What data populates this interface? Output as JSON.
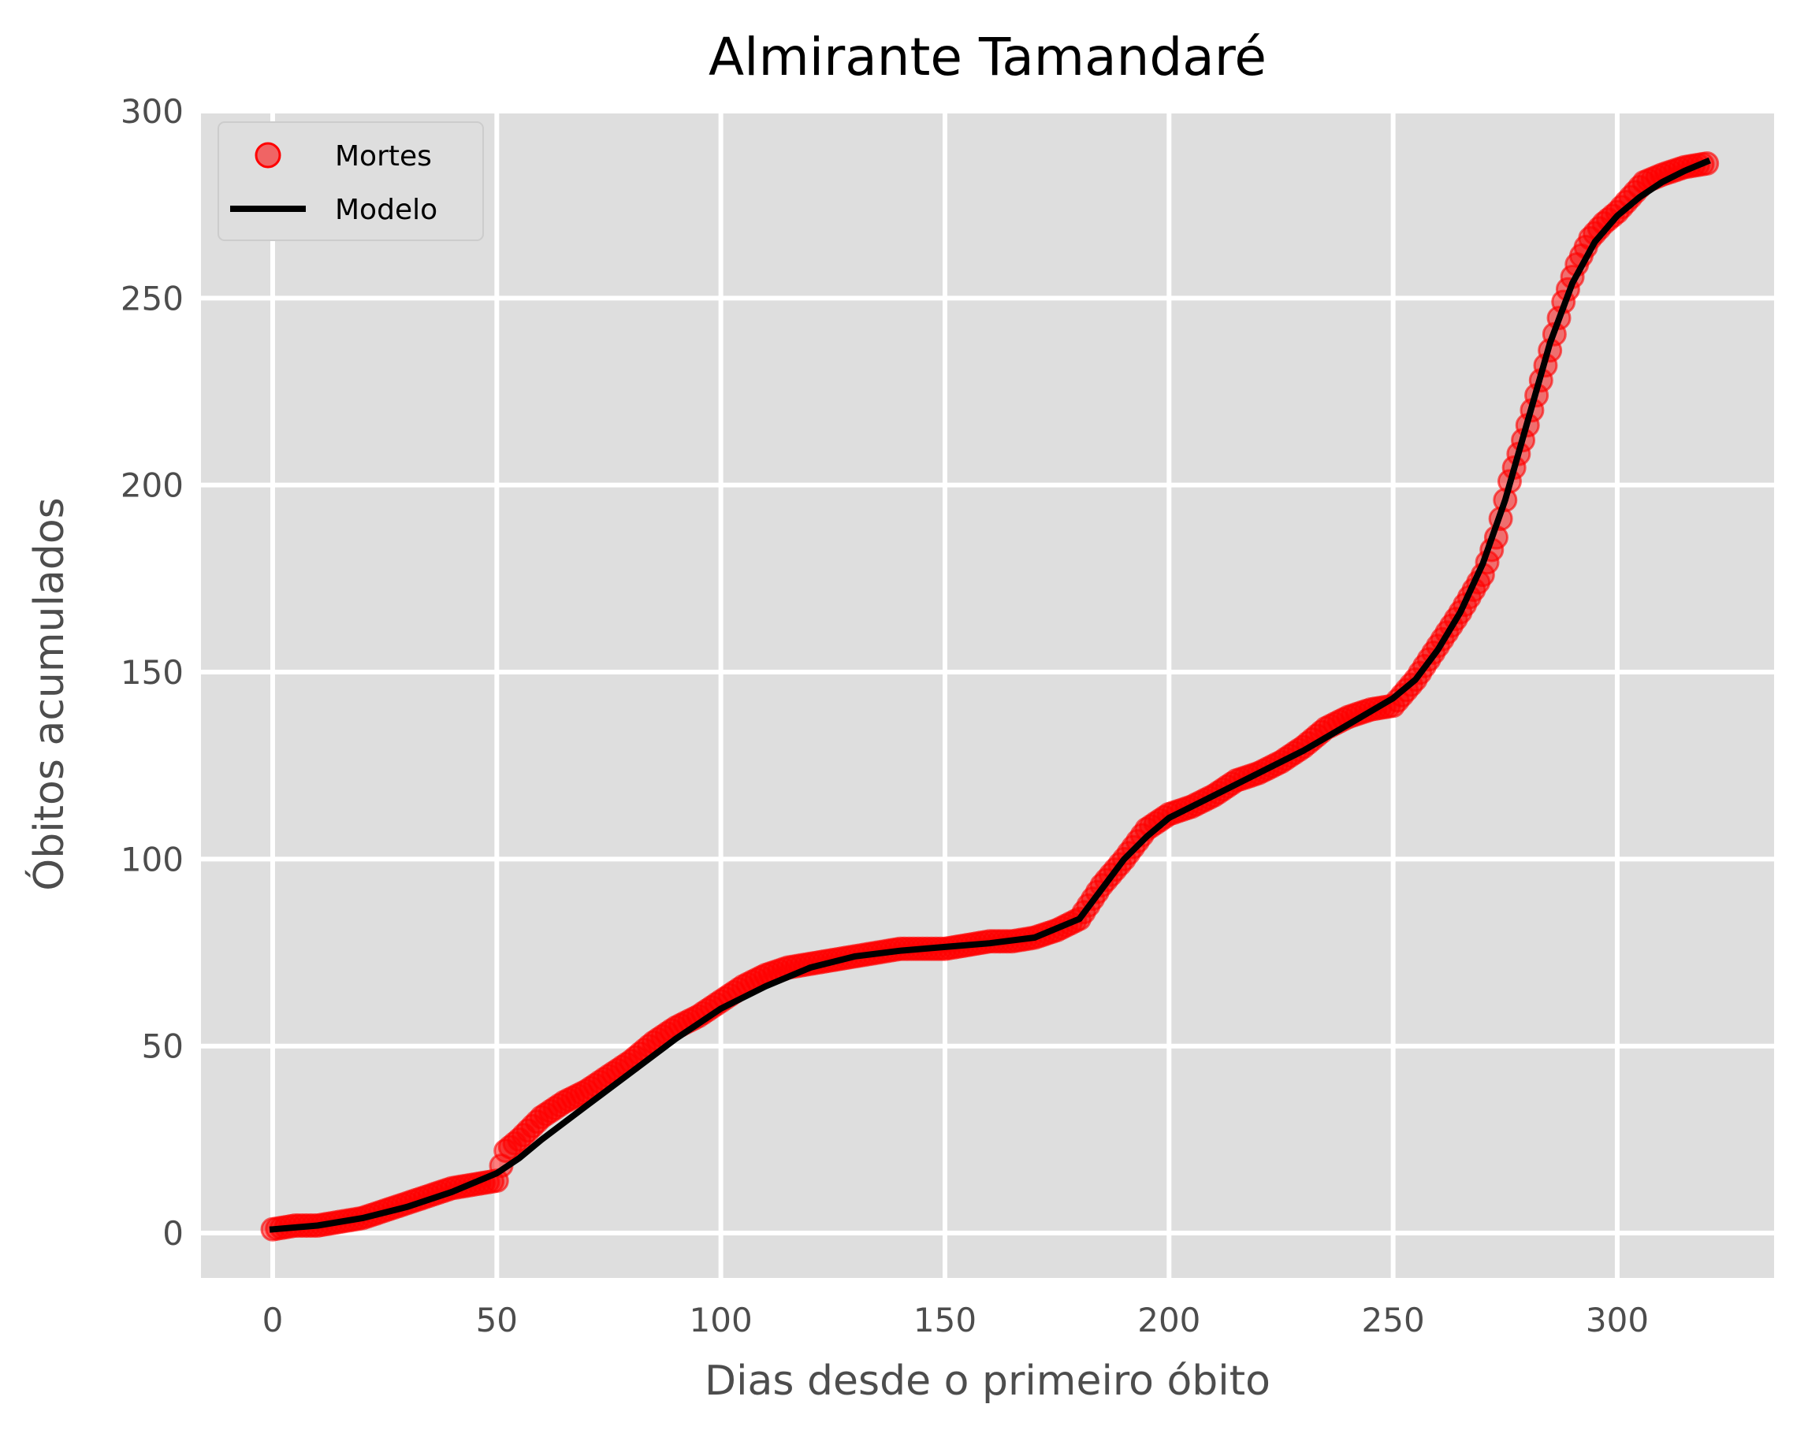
{
  "chart_data": {
    "type": "line",
    "title": "Almirante Tamandaré",
    "xlabel": "Dias desde o primeiro óbito",
    "ylabel": "Óbitos acumulados",
    "xlim": [
      -16,
      335
    ],
    "ylim": [
      -12,
      300
    ],
    "xticks": [
      0,
      50,
      100,
      150,
      200,
      250,
      300
    ],
    "yticks": [
      0,
      50,
      100,
      150,
      200,
      250,
      300
    ],
    "grid": true,
    "legend_position": "top-left",
    "background_color": "#dedede",
    "grid_color": "#ffffff",
    "series": [
      {
        "name": "Mortes",
        "kind": "scatter",
        "color": "#ff0000",
        "x": [
          0,
          5,
          10,
          15,
          20,
          25,
          30,
          35,
          40,
          45,
          50,
          52,
          55,
          60,
          65,
          70,
          75,
          80,
          85,
          90,
          95,
          100,
          105,
          110,
          115,
          120,
          125,
          130,
          135,
          140,
          145,
          150,
          155,
          160,
          165,
          170,
          175,
          180,
          185,
          190,
          195,
          200,
          205,
          210,
          215,
          220,
          225,
          230,
          235,
          240,
          245,
          250,
          255,
          260,
          265,
          270,
          273,
          276,
          279,
          282,
          285,
          288,
          291,
          294,
          297,
          300,
          303,
          306,
          310,
          315,
          320
        ],
        "y": [
          1,
          2,
          2,
          3,
          4,
          6,
          8,
          10,
          12,
          13,
          14,
          22,
          25,
          31,
          35,
          38,
          42,
          46,
          51,
          55,
          58,
          62,
          66,
          69,
          71,
          72,
          73,
          74,
          75,
          76,
          76,
          76,
          77,
          78,
          78,
          79,
          81,
          84,
          93,
          100,
          108,
          112,
          114,
          117,
          121,
          123,
          126,
          130,
          135,
          138,
          140,
          141,
          148,
          157,
          166,
          176,
          186,
          201,
          212,
          224,
          236,
          249,
          259,
          266,
          270,
          273,
          277,
          281,
          283,
          285,
          286
        ]
      },
      {
        "name": "Modelo",
        "kind": "line",
        "color": "#000000",
        "x": [
          0,
          10,
          20,
          30,
          40,
          50,
          55,
          60,
          70,
          80,
          90,
          100,
          110,
          120,
          130,
          140,
          150,
          160,
          170,
          180,
          185,
          190,
          195,
          200,
          210,
          220,
          230,
          240,
          250,
          255,
          260,
          265,
          270,
          275,
          280,
          285,
          290,
          295,
          300,
          305,
          310,
          315,
          320
        ],
        "y": [
          1,
          2,
          4,
          7,
          11,
          16,
          20,
          25,
          34,
          43,
          52,
          60,
          66,
          71,
          74,
          75.5,
          76.5,
          77.5,
          79,
          84,
          92,
          100,
          106,
          111,
          117,
          123,
          129,
          136,
          143,
          148,
          156,
          166,
          179,
          196,
          217,
          238,
          254,
          265,
          272,
          277,
          281,
          284,
          286.5
        ]
      }
    ]
  }
}
